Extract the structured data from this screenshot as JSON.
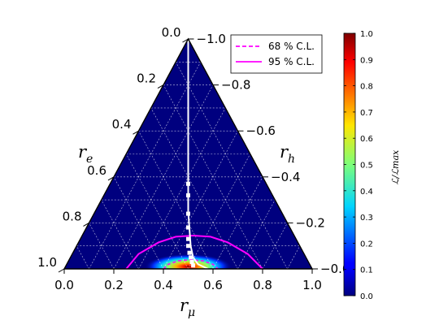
{
  "chart_data": {
    "type": "heatmap",
    "subtype": "ternary",
    "title": "",
    "axes": {
      "bottom": {
        "label_main": "r",
        "label_sub": "μ",
        "ticks": [
          "0.0",
          "0.2",
          "0.4",
          "0.6",
          "0.8",
          "1.0"
        ],
        "range": [
          0,
          1
        ]
      },
      "left": {
        "label_main": "r",
        "label_sub": "e",
        "ticks": [
          "0.0",
          "0.2",
          "0.4",
          "0.6",
          "0.8",
          "1.0"
        ],
        "range": [
          0,
          1
        ]
      },
      "right": {
        "label_main": "r",
        "label_sub": "h",
        "ticks": [
          "0.0",
          "0.2",
          "0.4",
          "0.6",
          "0.8",
          "1.0"
        ],
        "range": [
          0,
          1
        ]
      }
    },
    "grid": true,
    "legend": {
      "placement": "top-right",
      "entries": [
        {
          "label": "68 % C.L.",
          "style": "dashed",
          "color": "#ff00ff"
        },
        {
          "label": "95 % C.L.",
          "style": "solid",
          "color": "#ff00ff"
        }
      ]
    },
    "colorbar": {
      "label": "ℒ/ℒmax",
      "ticks": [
        "0.0",
        "0.1",
        "0.2",
        "0.3",
        "0.4",
        "0.5",
        "0.6",
        "0.7",
        "0.8",
        "0.9",
        "1.0"
      ],
      "range": [
        0,
        1
      ],
      "colormap": "jet"
    },
    "likelihood_peak": {
      "r_mu": 0.5,
      "r_h": 0.01,
      "sigma_r_mu": 0.08,
      "sigma_r_h": 0.025
    },
    "cl68_contour": [
      {
        "r_mu": 0.4,
        "r_h": 0.0
      },
      {
        "r_mu": 0.42,
        "r_h": 0.02
      },
      {
        "r_mu": 0.46,
        "r_h": 0.035
      },
      {
        "r_mu": 0.51,
        "r_h": 0.04
      },
      {
        "r_mu": 0.56,
        "r_h": 0.035
      },
      {
        "r_mu": 0.6,
        "r_h": 0.02
      },
      {
        "r_mu": 0.62,
        "r_h": 0.0
      }
    ],
    "cl95_contour": [
      {
        "r_mu": 0.25,
        "r_h": 0.0
      },
      {
        "r_mu": 0.3,
        "r_h": 0.065
      },
      {
        "r_mu": 0.38,
        "r_h": 0.115
      },
      {
        "r_mu": 0.45,
        "r_h": 0.14
      },
      {
        "r_mu": 0.52,
        "r_h": 0.145
      },
      {
        "r_mu": 0.59,
        "r_h": 0.14
      },
      {
        "r_mu": 0.66,
        "r_h": 0.115
      },
      {
        "r_mu": 0.74,
        "r_h": 0.065
      },
      {
        "r_mu": 0.8,
        "r_h": 0.0
      }
    ],
    "white_line": [
      {
        "r_mu": 0.0,
        "r_h": 1.0
      },
      {
        "r_mu": 0.0,
        "r_h": 0.25
      },
      {
        "r_mu": 0.01,
        "r_h": 0.1
      },
      {
        "r_mu": 0.02,
        "r_h": 0.05
      },
      {
        "r_mu": 0.04,
        "r_h": 0.02
      },
      {
        "r_mu": 0.08,
        "r_h": 0.0
      }
    ],
    "white_markers": [
      {
        "r_mu": 0.0,
        "r_h": 0.37
      },
      {
        "r_mu": 0.0,
        "r_h": 0.32
      },
      {
        "r_mu": 0.0,
        "r_h": 0.24
      },
      {
        "r_mu": 0.0,
        "r_h": 0.18
      },
      {
        "r_mu": 0.0,
        "r_h": 0.13
      },
      {
        "r_mu": 0.0,
        "r_h": 0.1
      },
      {
        "r_mu": 0.005,
        "r_h": 0.07
      },
      {
        "r_mu": 0.01,
        "r_h": 0.05
      },
      {
        "r_mu": 0.015,
        "r_h": 0.03
      },
      {
        "r_mu": 0.02,
        "r_h": 0.015
      }
    ]
  }
}
